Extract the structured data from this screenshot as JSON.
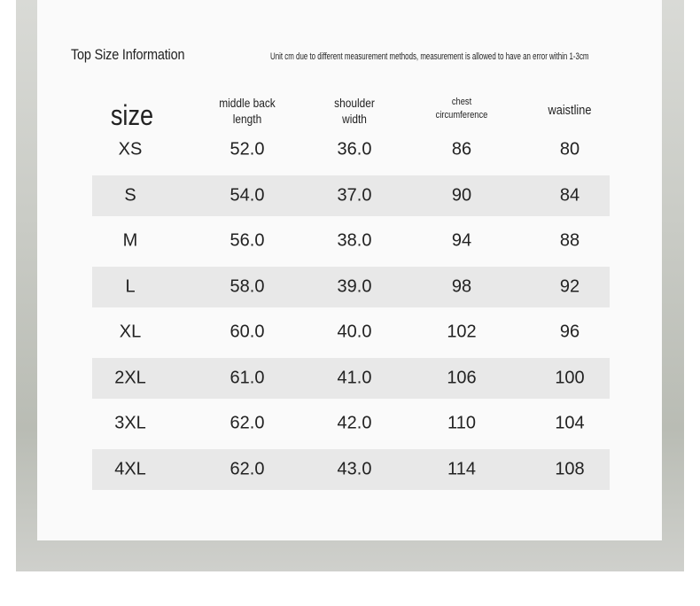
{
  "header": {
    "title": "Top Size Information",
    "note": "Unit cm due to different measurement methods, measurement is allowed to have an error within 1-3cm"
  },
  "table": {
    "columns": [
      [
        "size"
      ],
      [
        "middle back",
        "length"
      ],
      [
        "shoulder",
        "width"
      ],
      [
        "chest",
        "circumference"
      ],
      [
        "waistline"
      ]
    ],
    "rows": [
      [
        "XS",
        "52.0",
        "36.0",
        "86",
        "80"
      ],
      [
        "S",
        "54.0",
        "37.0",
        "90",
        "84"
      ],
      [
        "M",
        "56.0",
        "38.0",
        "94",
        "88"
      ],
      [
        "L",
        "58.0",
        "39.0",
        "98",
        "92"
      ],
      [
        "XL",
        "60.0",
        "40.0",
        "102",
        "96"
      ],
      [
        "2XL",
        "61.0",
        "41.0",
        "106",
        "100"
      ],
      [
        "3XL",
        "62.0",
        "42.0",
        "110",
        "104"
      ],
      [
        "4XL",
        "62.0",
        "43.0",
        "114",
        "108"
      ]
    ]
  }
}
